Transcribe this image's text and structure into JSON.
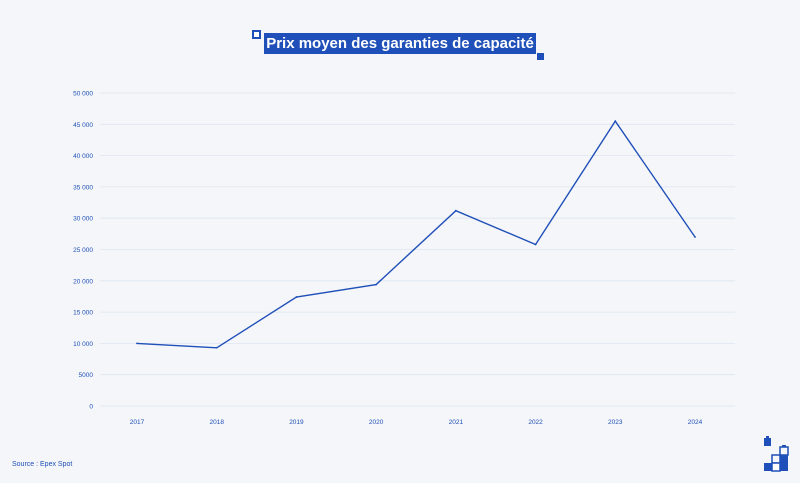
{
  "title": "Prix moyen des garanties de capacité",
  "source": "Source : Epex Spot",
  "colors": {
    "accent": "#1f4fb8",
    "line": "#1f4fb8",
    "grid": "#dde6f2",
    "background": "#f4f6f9"
  },
  "logo_icon": "battery-blocks-icon",
  "chart_data": {
    "type": "line",
    "x": [
      "2017",
      "2018",
      "2019",
      "2020",
      "2021",
      "2022",
      "2023",
      "2024"
    ],
    "series": [
      {
        "values": [
          10000,
          9300,
          17400,
          19400,
          31200,
          25800,
          45500,
          27000
        ]
      }
    ],
    "yticks": [
      0,
      5000,
      10000,
      15000,
      20000,
      25000,
      30000,
      35000,
      40000,
      45000,
      50000
    ],
    "ytick_labels": [
      "0",
      "5000",
      "10 000",
      "15 000",
      "20 000",
      "25 000",
      "30 000",
      "35 000",
      "40 000",
      "45 000",
      "50 000"
    ],
    "ylim": [
      0,
      50000
    ],
    "grid": true,
    "legend": false
  }
}
